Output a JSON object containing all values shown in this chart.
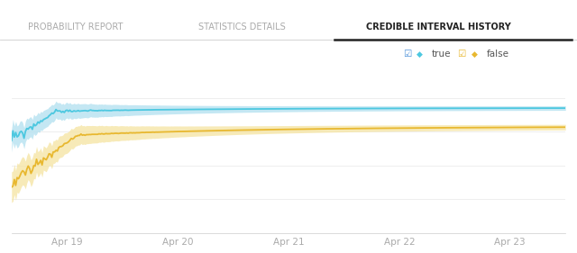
{
  "title_tabs": [
    "PROBABILITY REPORT",
    "STATISTICS DETAILS",
    "CREDIBLE INTERVAL HISTORY"
  ],
  "active_tab_idx": 2,
  "legend": [
    {
      "label": "true",
      "color": "#4dc8e0",
      "fill_color": "#b0e0ef"
    },
    {
      "label": "false",
      "color": "#e8b830",
      "fill_color": "#f5e4a0"
    }
  ],
  "x_ticks": [
    "Apr 19",
    "Apr 20",
    "Apr 21",
    "Apr 22",
    "Apr 23"
  ],
  "x_tick_positions": [
    0.5,
    1.5,
    2.5,
    3.5,
    4.5
  ],
  "x_lim": [
    0,
    5
  ],
  "y_lim": [
    0.0,
    0.9
  ],
  "bg_color": "#ffffff",
  "plot_bg": "#ffffff",
  "grid_color": "#ebebeb",
  "tab_separator_color": "#cccccc",
  "active_underline_color": "#222222",
  "tab_font_inactive": "#aaaaaa",
  "tab_font_active": "#222222",
  "tick_color": "#aaaaaa",
  "legend_text_color": "#555555",
  "blue_checkbox_color": "#4a90d9",
  "yellow_checkbox_color": "#e8b830"
}
